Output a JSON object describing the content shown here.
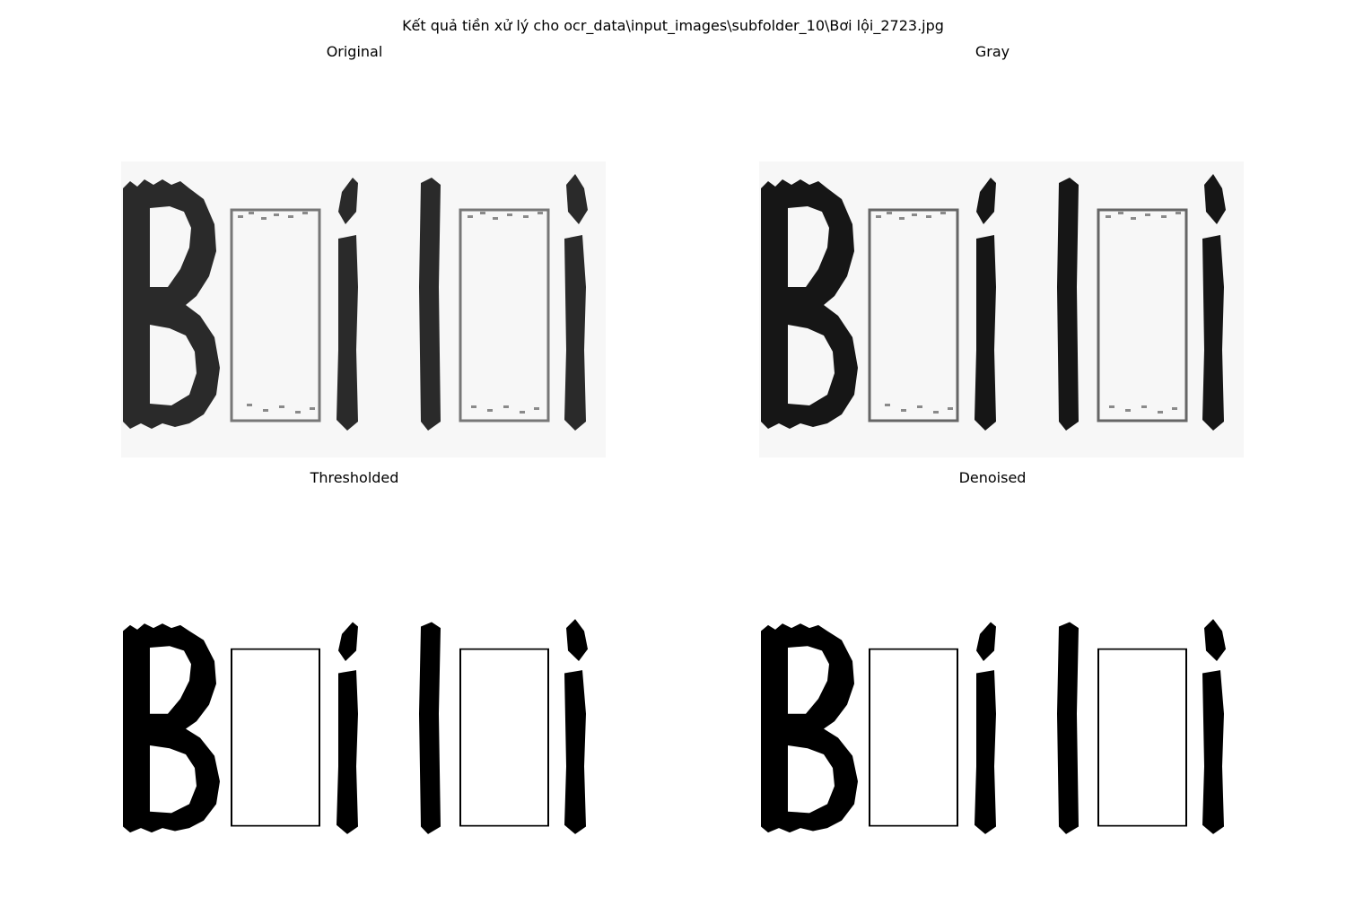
{
  "figure": {
    "suptitle": "Kết quả tiền xử lý cho ocr_data\\input_images\\subfolder_10\\Bơi lội_2723.jpg"
  },
  "panels": [
    {
      "title": "Original",
      "style": "soft",
      "ink": "#2a2a2a",
      "box_ink": "#777777"
    },
    {
      "title": "Gray",
      "style": "soft",
      "ink": "#161616",
      "box_ink": "#666666"
    },
    {
      "title": "Thresholded",
      "style": "binary",
      "ink": "#000000",
      "box_ink": "#000000"
    },
    {
      "title": "Denoised",
      "style": "binary",
      "ink": "#000000",
      "box_ink": "#000000"
    }
  ]
}
